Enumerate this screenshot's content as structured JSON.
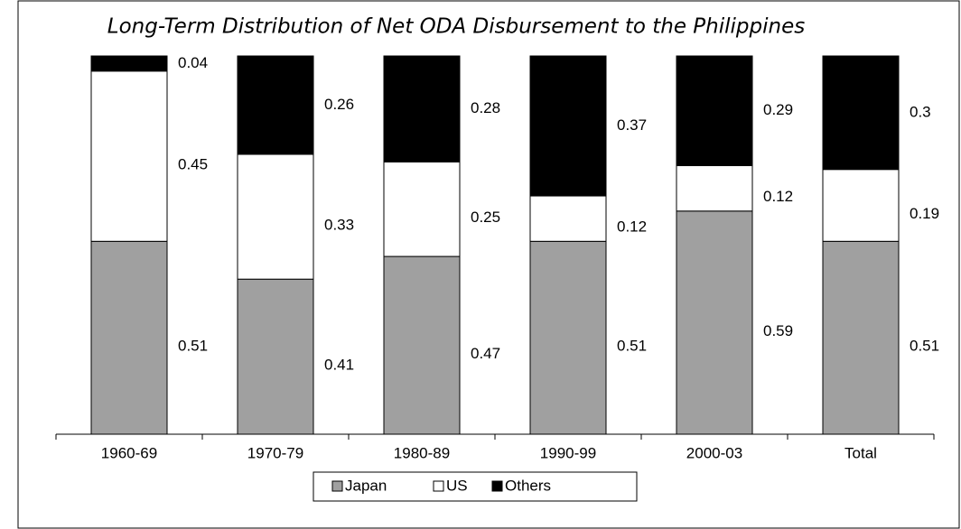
{
  "chart_data": {
    "type": "bar",
    "stacked": true,
    "title": "Long-Term Distribution of Net ODA Disbursement to the Philippines",
    "categories": [
      "1960-69",
      "1970-79",
      "1980-89",
      "1990-99",
      "2000-03",
      "Total"
    ],
    "series": [
      {
        "name": "Japan",
        "color": "#a0a0a0",
        "values": [
          0.51,
          0.41,
          0.47,
          0.51,
          0.59,
          0.51
        ]
      },
      {
        "name": "US",
        "color": "#ffffff",
        "values": [
          0.45,
          0.33,
          0.25,
          0.12,
          0.12,
          0.19
        ]
      },
      {
        "name": "Others",
        "color": "#000000",
        "values": [
          0.04,
          0.26,
          0.28,
          0.37,
          0.29,
          0.3
        ]
      }
    ],
    "legend": "bottom"
  }
}
